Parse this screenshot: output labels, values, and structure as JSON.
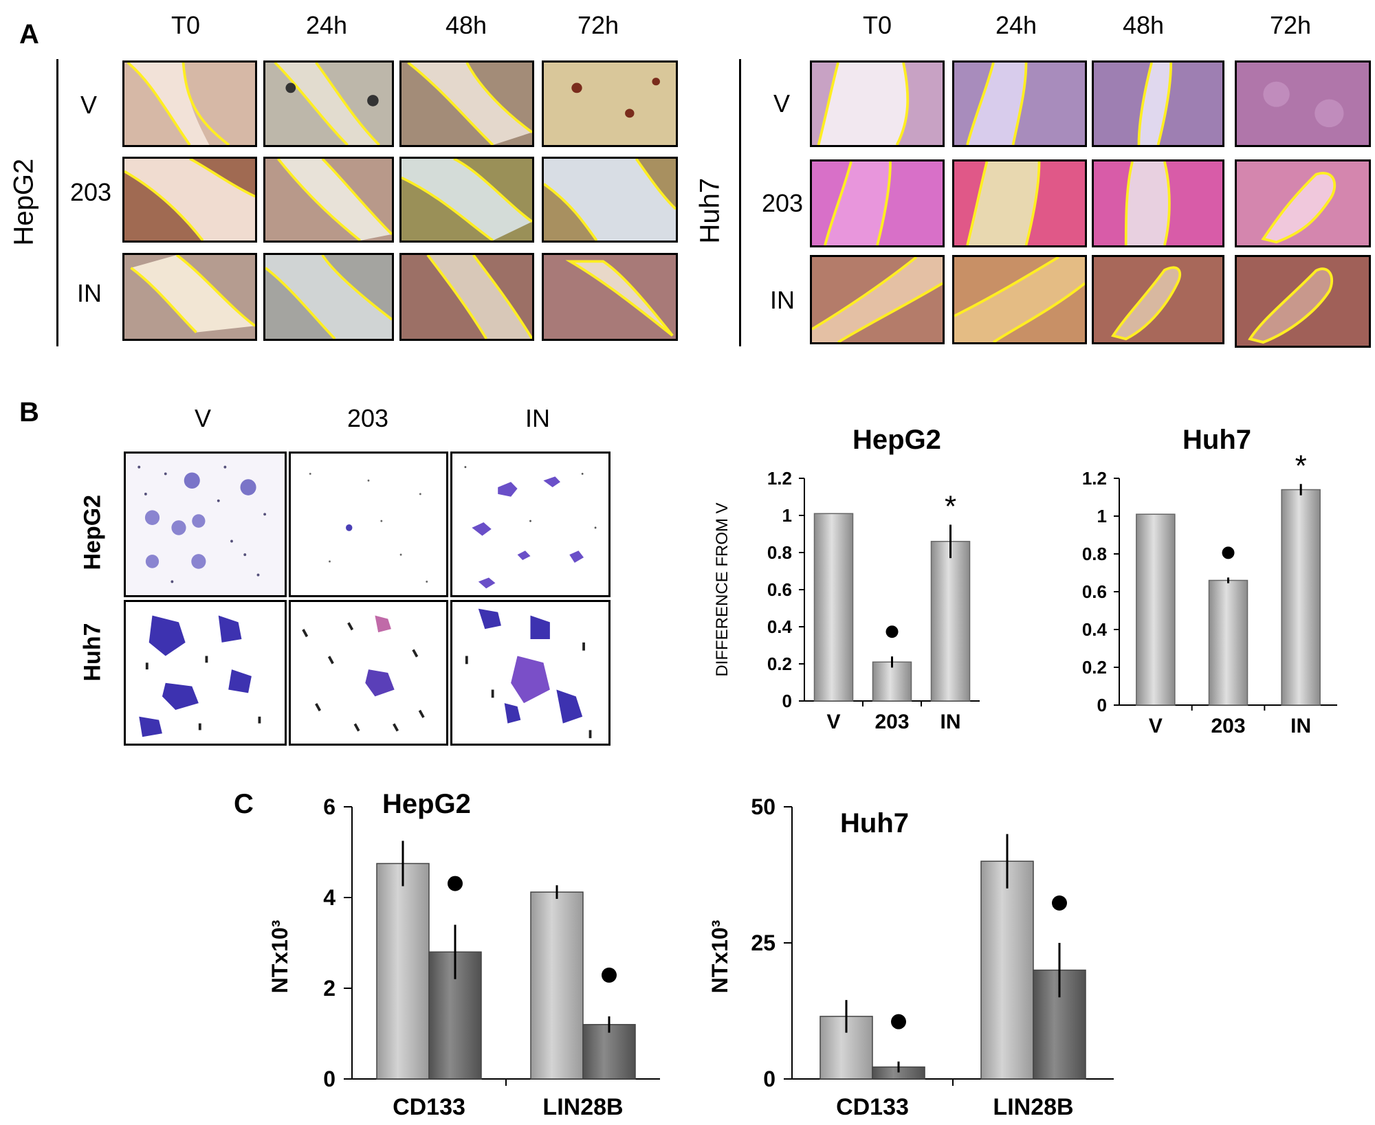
{
  "panel_labels": {
    "a": "A",
    "b": "B",
    "c": "C"
  },
  "panel_a": {
    "time_points": [
      "T0",
      "24h",
      "48h",
      "72h"
    ],
    "conditions": [
      "V",
      "203",
      "IN"
    ],
    "cell_lines": [
      "HepG2",
      "Huh7"
    ]
  },
  "panel_b": {
    "conditions": [
      "V",
      "203",
      "IN"
    ],
    "cell_lines": [
      "HepG2",
      "Huh7"
    ]
  },
  "colors": {
    "bar_light": "#b8b8b8",
    "bar_dark": "#6a6a6a",
    "wound_line": "#ffee22",
    "hepg2_tile": "#d9b9a6",
    "huh7_tile": "#c886c2",
    "stain": "#4a3fb5"
  },
  "chart_data": [
    {
      "type": "bar",
      "title": "HepG2",
      "ylabel": "DIFFERENCE FROM V",
      "categories": [
        "V",
        "203",
        "IN"
      ],
      "values": [
        1.01,
        0.21,
        0.86
      ],
      "errors": [
        0,
        0.03,
        0.09
      ],
      "significance": [
        "",
        "●",
        "*"
      ],
      "ylim": [
        0,
        1.2
      ],
      "yticks": [
        "0",
        "0.2",
        "0.4",
        "0.6",
        "0.8",
        "1",
        "1.2"
      ]
    },
    {
      "type": "bar",
      "title": "Huh7",
      "ylabel": "",
      "categories": [
        "V",
        "203",
        "IN"
      ],
      "values": [
        1.01,
        0.66,
        1.14
      ],
      "errors": [
        0,
        0.015,
        0.03
      ],
      "significance": [
        "",
        "●",
        "*"
      ],
      "ylim": [
        0,
        1.2
      ],
      "yticks": [
        "0",
        "0.2",
        "0.4",
        "0.6",
        "0.8",
        "1",
        "1.2"
      ]
    },
    {
      "type": "bar",
      "title": "HepG2",
      "ylabel": "NTx10³",
      "categories": [
        "CD133",
        "LIN28B"
      ],
      "series": [
        {
          "values": [
            4.75,
            4.12
          ],
          "errors": [
            0.5,
            0.15
          ]
        },
        {
          "values": [
            2.8,
            1.2
          ],
          "errors": [
            0.6,
            0.18
          ]
        }
      ],
      "significance": [
        "●",
        "●"
      ],
      "ylim": [
        0,
        6
      ],
      "yticks": [
        "0",
        "2",
        "4",
        "6"
      ]
    },
    {
      "type": "bar",
      "title": "Huh7",
      "ylabel": "NTx10³",
      "categories": [
        "CD133",
        "LIN28B"
      ],
      "series": [
        {
          "values": [
            11.5,
            40
          ],
          "errors": [
            3,
            5
          ]
        },
        {
          "values": [
            2.2,
            20
          ],
          "errors": [
            1,
            5
          ]
        }
      ],
      "significance": [
        "●",
        "●"
      ],
      "ylim": [
        0,
        50
      ],
      "yticks": [
        "0",
        "25",
        "50"
      ]
    }
  ]
}
